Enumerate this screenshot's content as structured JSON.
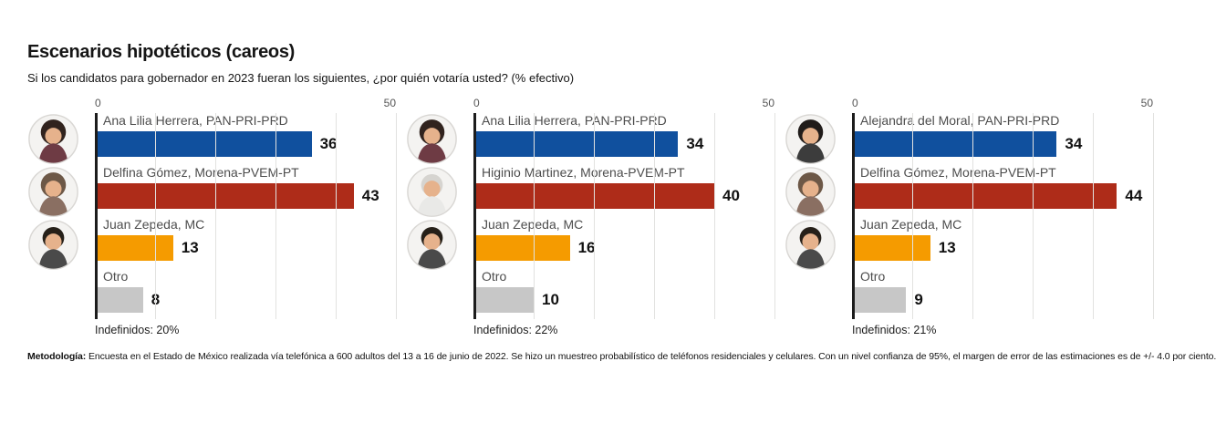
{
  "title": "Escenarios hipotéticos (careos)",
  "subtitle": "Si los candidatos para gobernador en 2023 fueran los siguientes, ¿por quién votaría usted? (% efectivo)",
  "axis": {
    "min_label": "0",
    "max_label": "50"
  },
  "colors": {
    "pan_pri_prd": "#10509e",
    "morena_pvem_pt": "#ae2c19",
    "mc": "#f59b00",
    "otro": "#c7c7c7",
    "axis": "#1c1c1c",
    "gridline": "#e2e2e0"
  },
  "methodology": {
    "label": "Metodología:",
    "text": " Encuesta en el Estado de México realizada vía telefónica a 600 adultos del 13 a 16 de junio de 2022. Se hizo un muestreo probabilístico de teléfonos residenciales y celulares. Con un nivel confianza de 95%, el margen de error de las estimaciones es de +/- 4.0 por ciento."
  },
  "chart_data": [
    {
      "type": "bar",
      "orientation": "horizontal",
      "xlim": [
        0,
        50
      ],
      "gridline_step": 10,
      "categories": [
        "Ana Lilia Herrera, PAN-PRI-PRD",
        "Delfina Gómez, Morena-PVEM-PT",
        "Juan Zepeda, MC",
        "Otro"
      ],
      "values": [
        36,
        43,
        13,
        8
      ],
      "bar_colors": [
        "#10509e",
        "#ae2c19",
        "#f59b00",
        "#c7c7c7"
      ],
      "avatars": [
        "ana-lilia-herrera",
        "delfina-gomez",
        "juan-zepeda"
      ],
      "footnote": "Indefinidos: 20%",
      "undecided_pct": 20
    },
    {
      "type": "bar",
      "orientation": "horizontal",
      "xlim": [
        0,
        50
      ],
      "gridline_step": 10,
      "categories": [
        "Ana Lilia Herrera, PAN-PRI-PRD",
        "Higinio Martinez, Morena-PVEM-PT",
        "Juan Zepeda, MC",
        "Otro"
      ],
      "values": [
        34,
        40,
        16,
        10
      ],
      "bar_colors": [
        "#10509e",
        "#ae2c19",
        "#f59b00",
        "#c7c7c7"
      ],
      "avatars": [
        "ana-lilia-herrera",
        "higinio-martinez",
        "juan-zepeda"
      ],
      "footnote": "Indefinidos: 22%",
      "undecided_pct": 22
    },
    {
      "type": "bar",
      "orientation": "horizontal",
      "xlim": [
        0,
        50
      ],
      "gridline_step": 10,
      "categories": [
        "Alejandra del Moral, PAN-PRI-PRD",
        "Delfina Gómez, Morena-PVEM-PT",
        "Juan Zepeda, MC",
        "Otro"
      ],
      "values": [
        34,
        44,
        13,
        9
      ],
      "bar_colors": [
        "#10509e",
        "#ae2c19",
        "#f59b00",
        "#c7c7c7"
      ],
      "avatars": [
        "alejandra-del-moral",
        "delfina-gomez",
        "juan-zepeda"
      ],
      "footnote": "Indefinidos: 21%",
      "undecided_pct": 21
    }
  ]
}
